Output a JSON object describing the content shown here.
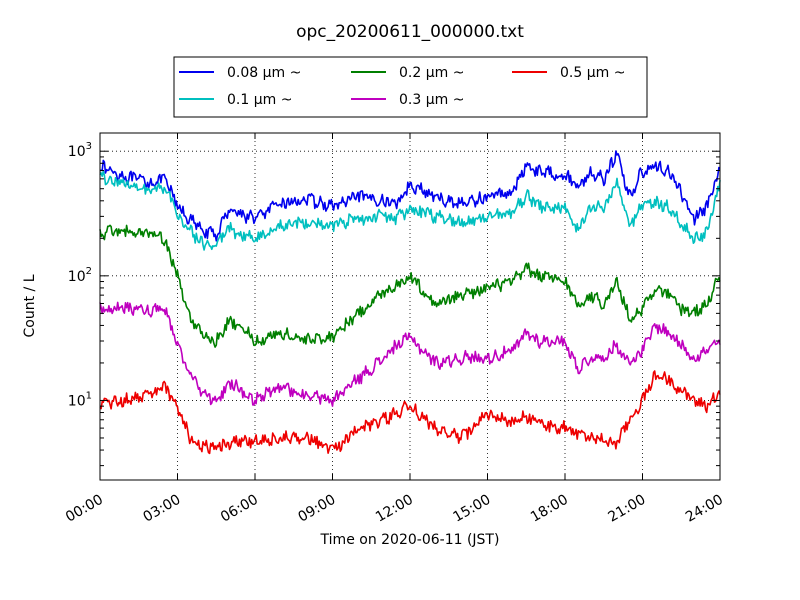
{
  "chart_data": {
    "type": "line",
    "title": "opc_20200611_000000.txt",
    "xlabel": "Time on 2020-06-11 (JST)",
    "ylabel": "Count / L",
    "yscale": "log",
    "xlim": [
      "00:00",
      "24:00"
    ],
    "ylim": [
      2.3,
      1400
    ],
    "grid": true,
    "legend_position": "top-center",
    "x_ticks": [
      "00:00",
      "03:00",
      "06:00",
      "09:00",
      "12:00",
      "15:00",
      "18:00",
      "21:00",
      "24:00"
    ],
    "y_ticks": [
      {
        "base": "10",
        "exp": "1",
        "value": 10
      },
      {
        "base": "10",
        "exp": "2",
        "value": 100
      },
      {
        "base": "10",
        "exp": "3",
        "value": 1000
      }
    ],
    "x": [
      "00:00",
      "01:00",
      "02:00",
      "02:30",
      "03:00",
      "03:30",
      "04:00",
      "04:30",
      "05:00",
      "05:30",
      "06:00",
      "07:00",
      "08:00",
      "09:00",
      "10:00",
      "11:00",
      "11:30",
      "12:00",
      "13:00",
      "14:00",
      "15:00",
      "16:00",
      "16:30",
      "17:00",
      "18:00",
      "18:30",
      "19:00",
      "19:30",
      "20:00",
      "20:30",
      "21:00",
      "21:30",
      "22:00",
      "22:30",
      "23:00",
      "23:30",
      "24:00"
    ],
    "series": [
      {
        "name": "0.08 μm ~",
        "color": "#0000ee",
        "values": [
          760,
          620,
          560,
          600,
          360,
          280,
          230,
          210,
          350,
          310,
          290,
          380,
          410,
          360,
          430,
          400,
          380,
          550,
          420,
          380,
          430,
          480,
          780,
          690,
          650,
          520,
          680,
          600,
          960,
          430,
          700,
          750,
          700,
          460,
          290,
          360,
          700
        ]
      },
      {
        "name": "0.1 μm ~",
        "color": "#00bfbf",
        "values": [
          640,
          540,
          490,
          510,
          310,
          230,
          180,
          170,
          240,
          210,
          200,
          250,
          270,
          250,
          290,
          300,
          290,
          340,
          300,
          270,
          300,
          320,
          450,
          360,
          350,
          230,
          360,
          350,
          560,
          250,
          380,
          390,
          350,
          260,
          200,
          220,
          550
        ]
      },
      {
        "name": "0.2 μm ~",
        "color": "#007f00",
        "values": [
          220,
          230,
          215,
          200,
          100,
          45,
          32,
          30,
          43,
          40,
          30,
          35,
          30,
          33,
          50,
          75,
          85,
          100,
          60,
          70,
          80,
          90,
          115,
          100,
          90,
          58,
          70,
          60,
          90,
          45,
          55,
          80,
          70,
          55,
          50,
          60,
          100
        ]
      },
      {
        "name": "0.3 μm ~",
        "color": "#bf00bf",
        "values": [
          55,
          55,
          53,
          55,
          28,
          16,
          11,
          10,
          14,
          12,
          10,
          13,
          11,
          10,
          15,
          22,
          28,
          32,
          20,
          22,
          22,
          25,
          35,
          30,
          30,
          18,
          22,
          22,
          28,
          20,
          25,
          40,
          35,
          28,
          22,
          25,
          30
        ]
      },
      {
        "name": "0.5 μm ~",
        "color": "#ee0000",
        "values": [
          9.5,
          10,
          11,
          13,
          8.5,
          5,
          4.2,
          4.3,
          4.5,
          4.6,
          4.8,
          5,
          5.2,
          4,
          5.8,
          7,
          8,
          9,
          6,
          5,
          8,
          6.5,
          7.5,
          6.5,
          6,
          5.5,
          5,
          4.8,
          4.5,
          7,
          10,
          16,
          15,
          12,
          10,
          9,
          12
        ]
      }
    ]
  },
  "legend": {
    "items": [
      {
        "label": "0.08 μm ~",
        "color": "#0000ee"
      },
      {
        "label": "0.1 μm ~",
        "color": "#00bfbf"
      },
      {
        "label": "0.2 μm ~",
        "color": "#007f00"
      },
      {
        "label": "0.3 μm ~",
        "color": "#bf00bf"
      },
      {
        "label": "0.5 μm ~",
        "color": "#ee0000"
      }
    ]
  }
}
